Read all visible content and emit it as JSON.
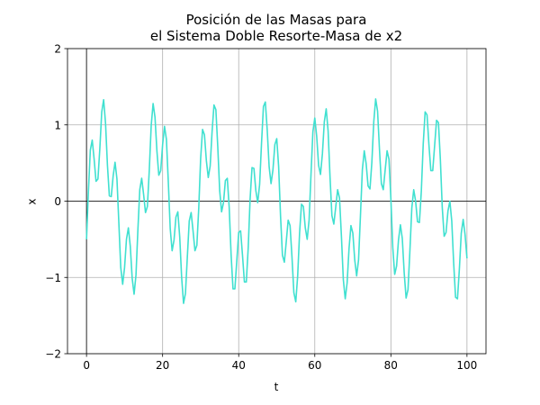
{
  "chart_data": {
    "type": "line",
    "title": [
      "Posición de las Masas para",
      "el Sistema Doble Resorte-Masa de x2"
    ],
    "xlabel": "t",
    "ylabel": "x",
    "color": "#40e0d0",
    "grid": true,
    "axhline": 0,
    "axvline": 0,
    "xlim": [
      -5,
      105
    ],
    "xticks": [
      0,
      20,
      40,
      60,
      80,
      100
    ],
    "ylim": [
      -2,
      2
    ],
    "yticks": [
      {
        "value": -2,
        "label": "−2"
      },
      {
        "value": -1,
        "label": "−1"
      },
      0,
      1,
      2
    ],
    "x": [
      0,
      0.5,
      1,
      1.5,
      2,
      2.5,
      3,
      3.5,
      4,
      4.5,
      5,
      5.5,
      6,
      6.5,
      7,
      7.5,
      8,
      8.5,
      9,
      9.5,
      10,
      10.5,
      11,
      11.5,
      12,
      12.5,
      13,
      13.5,
      14,
      14.5,
      15,
      15.5,
      16,
      16.5,
      17,
      17.5,
      18,
      18.5,
      19,
      19.5,
      20,
      20.5,
      21,
      21.5,
      22,
      22.5,
      23,
      23.5,
      24,
      24.5,
      25,
      25.5,
      26,
      26.5,
      27,
      27.5,
      28,
      28.5,
      29,
      29.5,
      30,
      30.5,
      31,
      31.5,
      32,
      32.5,
      33,
      33.5,
      34,
      34.5,
      35,
      35.5,
      36,
      36.5,
      37,
      37.5,
      38,
      38.5,
      39,
      39.5,
      40,
      40.5,
      41,
      41.5,
      42,
      42.5,
      43,
      43.5,
      44,
      44.5,
      45,
      45.5,
      46,
      46.5,
      47,
      47.5,
      48,
      48.5,
      49,
      49.5,
      50,
      50.5,
      51,
      51.5,
      52,
      52.5,
      53,
      53.5,
      54,
      54.5,
      55,
      55.5,
      56,
      56.5,
      57,
      57.5,
      58,
      58.5,
      59,
      59.5,
      60,
      60.5,
      61,
      61.5,
      62,
      62.5,
      63,
      63.5,
      64,
      64.5,
      65,
      65.5,
      66,
      66.5,
      67,
      67.5,
      68,
      68.5,
      69,
      69.5,
      70,
      70.5,
      71,
      71.5,
      72,
      72.5,
      73,
      73.5,
      74,
      74.5,
      75,
      75.5,
      76,
      76.5,
      77,
      77.5,
      78,
      78.5,
      79,
      79.5,
      80,
      80.5,
      81,
      81.5,
      82,
      82.5,
      83,
      83.5,
      84,
      84.5,
      85,
      85.5,
      86,
      86.5,
      87,
      87.5,
      88,
      88.5,
      89,
      89.5,
      90,
      90.5,
      91,
      91.5,
      92,
      92.5,
      93,
      93.5,
      94,
      94.5,
      95,
      95.5,
      96,
      96.5,
      97,
      97.5,
      98,
      98.5,
      99,
      99.5,
      100
    ],
    "values": [
      -0.5,
      0.13,
      0.67,
      0.8,
      0.55,
      0.26,
      0.29,
      0.69,
      1.17,
      1.33,
      1.02,
      0.47,
      0.07,
      0.06,
      0.33,
      0.51,
      0.29,
      -0.29,
      -0.87,
      -1.09,
      -0.87,
      -0.5,
      -0.35,
      -0.59,
      -1.01,
      -1.22,
      -0.97,
      -0.38,
      0.15,
      0.3,
      0.09,
      -0.15,
      -0.07,
      0.41,
      0.99,
      1.28,
      1.1,
      0.66,
      0.34,
      0.4,
      0.74,
      0.98,
      0.81,
      0.25,
      -0.36,
      -0.65,
      -0.51,
      -0.21,
      -0.14,
      -0.47,
      -1.0,
      -1.34,
      -1.21,
      -0.73,
      -0.26,
      -0.15,
      -0.39,
      -0.65,
      -0.58,
      -0.09,
      0.56,
      0.94,
      0.87,
      0.53,
      0.31,
      0.46,
      0.91,
      1.26,
      1.2,
      0.71,
      0.14,
      -0.14,
      -0.02,
      0.27,
      0.3,
      -0.08,
      -0.7,
      -1.15,
      -1.15,
      -0.78,
      -0.41,
      -0.39,
      -0.71,
      -1.06,
      -1.06,
      -0.61,
      0.03,
      0.44,
      0.43,
      0.14,
      -0.02,
      0.22,
      0.76,
      1.24,
      1.3,
      0.93,
      0.45,
      0.23,
      0.41,
      0.74,
      0.82,
      0.45,
      -0.2,
      -0.71,
      -0.8,
      -0.53,
      -0.25,
      -0.32,
      -0.73,
      -1.2,
      -1.32,
      -0.98,
      -0.42,
      -0.04,
      -0.07,
      -0.35,
      -0.5,
      -0.25,
      0.35,
      0.91,
      1.09,
      0.85,
      0.47,
      0.35,
      0.62,
      1.04,
      1.21,
      0.92,
      0.32,
      -0.19,
      -0.3,
      -0.08,
      0.15,
      0.04,
      -0.46,
      -1.03,
      -1.28,
      -1.07,
      -0.62,
      -0.32,
      -0.42,
      -0.77,
      -0.98,
      -0.77,
      -0.19,
      0.41,
      0.66,
      0.49,
      0.2,
      0.16,
      0.51,
      1.04,
      1.34,
      1.18,
      0.68,
      0.23,
      0.15,
      0.41,
      0.66,
      0.55,
      0.03,
      -0.61,
      -0.96,
      -0.85,
      -0.51,
      -0.31,
      -0.49,
      -0.94,
      -1.27,
      -1.16,
      -0.65,
      -0.09,
      0.15,
      0,
      -0.27,
      -0.28,
      0.13,
      0.75,
      1.17,
      1.13,
      0.74,
      0.4,
      0.4,
      0.73,
      1.06,
      1.03,
      0.55,
      -0.08,
      -0.46,
      -0.41,
      -0.13,
      0,
      -0.26,
      -0.81,
      -1.26,
      -1.28,
      -0.89,
      -0.42,
      -0.24,
      -0.44,
      -0.75
    ]
  }
}
